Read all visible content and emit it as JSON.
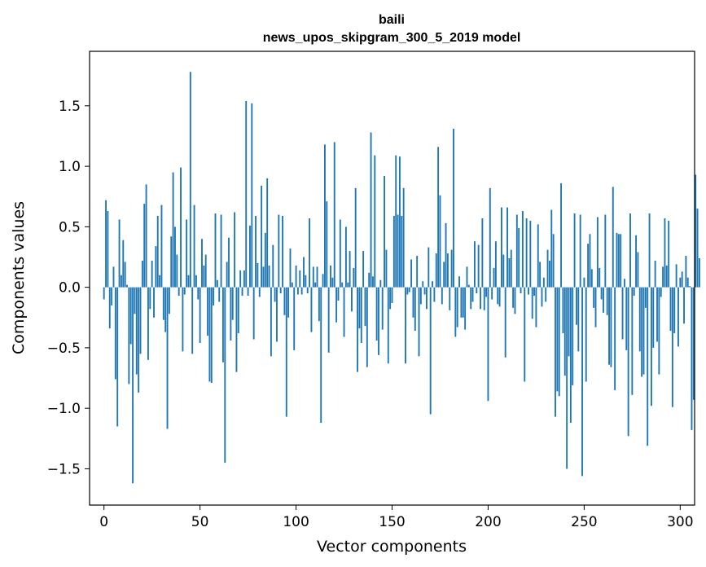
{
  "chart_data": {
    "type": "bar",
    "title": "baili",
    "subtitle": "news_upos_skipgram_300_5_2019 model",
    "xlabel": "Vector components",
    "ylabel": "Components values",
    "xlim": [
      -7.5,
      307.5
    ],
    "ylim": [
      -1.8,
      1.95
    ],
    "x_ticks": [
      0,
      50,
      100,
      150,
      200,
      250,
      300
    ],
    "x_tick_labels": [
      "0",
      "50",
      "100",
      "150",
      "200",
      "250",
      "300"
    ],
    "y_ticks": [
      -1.5,
      -1.0,
      -0.5,
      0.0,
      0.5,
      1.0,
      1.5
    ],
    "y_tick_labels": [
      "−1.5",
      "−1.0",
      "−0.5",
      "0.0",
      "0.5",
      "1.0",
      "1.5"
    ],
    "bar_color": "#1f77b4",
    "grid": false,
    "values": [
      -0.1,
      0.72,
      0.63,
      -0.34,
      -0.15,
      0.17,
      -0.76,
      -1.15,
      0.56,
      0.1,
      0.39,
      0.21,
      0.02,
      -0.8,
      -0.47,
      -1.62,
      -0.22,
      -0.72,
      -0.87,
      -0.55,
      0.22,
      0.69,
      0.85,
      -0.6,
      -0.18,
      0.22,
      -0.25,
      0.34,
      0.59,
      0.1,
      0.68,
      -0.27,
      -0.37,
      -1.17,
      -0.22,
      0.42,
      0.95,
      0.5,
      0.27,
      -0.07,
      0.99,
      -0.53,
      -0.06,
      0.56,
      0.1,
      1.78,
      -0.55,
      0.68,
      0.1,
      -0.1,
      -0.46,
      0.4,
      0.18,
      0.27,
      -0.4,
      -0.78,
      -0.79,
      -0.15,
      0.61,
      0.06,
      -0.12,
      0.6,
      -0.62,
      -1.45,
      0.21,
      0.41,
      -0.44,
      -0.27,
      0.62,
      -0.7,
      -0.38,
      0.14,
      -0.07,
      0.14,
      1.54,
      -0.07,
      0.51,
      1.52,
      -0.43,
      0.59,
      0.2,
      -0.08,
      0.84,
      0.17,
      0.45,
      0.9,
      0.18,
      -0.57,
      0.35,
      -0.12,
      -0.45,
      0.6,
      -0.05,
      0.59,
      -0.23,
      -1.07,
      -0.25,
      0.32,
      0.04,
      -0.52,
      0.18,
      -0.06,
      0.14,
      -0.06,
      0.25,
      0.1,
      -0.05,
      0.57,
      -0.37,
      0.17,
      0.04,
      0.17,
      -0.28,
      -1.12,
      0.11,
      1.18,
      0.71,
      -0.54,
      0.18,
      0.08,
      1.2,
      -0.29,
      -0.11,
      0.56,
      0.04,
      -0.41,
      0.5,
      0.04,
      0.3,
      -0.2,
      0.16,
      0.82,
      -0.7,
      -0.34,
      -0.46,
      0.3,
      -0.32,
      -0.66,
      0.12,
      1.28,
      0.09,
      1.09,
      -0.44,
      -0.56,
      0.06,
      -0.35,
      0.92,
      0.31,
      -0.63,
      -0.18,
      -0.13,
      0.59,
      1.09,
      0.6,
      1.08,
      0.59,
      0.82,
      -0.63,
      -0.06,
      -0.04,
      0.23,
      -0.25,
      -0.36,
      0.26,
      -0.57,
      -0.14,
      0.05,
      -0.06,
      -0.18,
      0.33,
      -1.05,
      0.05,
      -0.12,
      0.28,
      1.16,
      0.76,
      -0.14,
      0.21,
      0.53,
      0.28,
      -0.19,
      0.31,
      1.31,
      -0.41,
      -0.33,
      0.09,
      -0.25,
      -0.25,
      -0.35,
      0.17,
      0.02,
      -0.18,
      -0.12,
      0.38,
      -0.05,
      0.35,
      -0.18,
      0.57,
      -0.19,
      -0.08,
      -0.94,
      0.82,
      -0.1,
      0.16,
      0.38,
      -0.14,
      -0.16,
      0.66,
      0.27,
      -0.58,
      0.66,
      0.24,
      0.31,
      -0.17,
      -0.22,
      0.6,
      0.49,
      -0.05,
      0.63,
      -0.78,
      0.57,
      -0.06,
      0.55,
      -0.26,
      -0.07,
      -0.33,
      0.52,
      0.21,
      -0.16,
      0.08,
      -0.12,
      0.31,
      0.22,
      0.64,
      0.44,
      -1.07,
      -0.86,
      -0.9,
      0.86,
      -0.38,
      -0.73,
      -1.5,
      -0.57,
      -1.12,
      -0.81,
      0.61,
      -0.31,
      -0.53,
      0.6,
      -1.56,
      0.08,
      -0.78,
      0.36,
      0.44,
      0.15,
      -0.17,
      -0.33,
      0.58,
      0.16,
      -0.1,
      -0.21,
      0.6,
      -0.23,
      -0.64,
      -0.66,
      0.83,
      -0.85,
      0.45,
      0.44,
      0.44,
      -0.43,
      0.07,
      -0.52,
      -1.23,
      0.61,
      -0.89,
      -0.07,
      0.43,
      0.29,
      -0.53,
      -0.74,
      -0.72,
      -0.17,
      -1.31,
      0.61,
      -0.98,
      -0.5,
      0.22,
      -0.45,
      -0.72,
      -0.08,
      0.17,
      0.57,
      0.18,
      0.55,
      -0.36,
      -0.99,
      -0.38,
      0.19,
      -0.49,
      0.08,
      0.13,
      -0.3,
      0.26,
      0.08,
      0.01,
      -1.18,
      -0.93,
      0.93,
      0.65,
      0.24
    ]
  }
}
